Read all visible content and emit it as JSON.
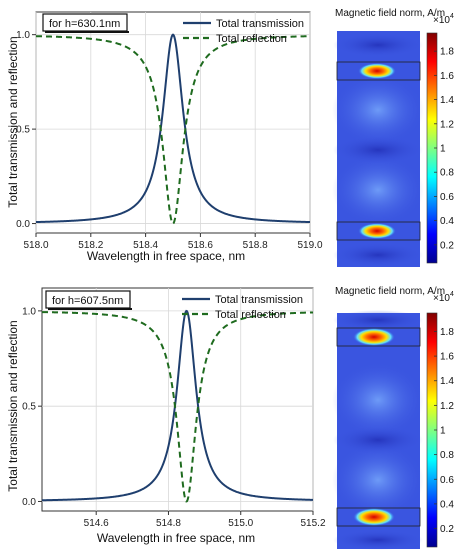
{
  "chart_data": [
    {
      "type": "line",
      "annotation": "for h=630.1nm",
      "xlabel": "Wavelength in free space, nm",
      "ylabel": "Total transmission and reflection",
      "xlim": [
        518.0,
        519.0
      ],
      "ylim": [
        -0.05,
        1.12
      ],
      "xticks": [
        "518.0",
        "518.2",
        "518.4",
        "518.6",
        "518.8",
        "519.0"
      ],
      "yticks": [
        "0.0",
        "0.5",
        "1.0"
      ],
      "grid": true,
      "legend_position": "top-right",
      "series": [
        {
          "name": "Total transmission",
          "color": "#1f3f6e",
          "style": "solid",
          "resonance_center": 518.5,
          "half_width": 0.045,
          "peak": 1.0,
          "x_start": 518.0,
          "x_end": 519.0
        },
        {
          "name": "Total reflection",
          "color": "#1f6b1f",
          "style": "dashed",
          "resonance_center": 518.5,
          "half_width": 0.045,
          "peak": 1.0,
          "x_start": 518.0,
          "x_end": 519.0
        }
      ]
    },
    {
      "type": "line",
      "annotation": "for h=607.5nm",
      "xlabel": "Wavelength in free space, nm",
      "ylabel": "Total transmission and reflection",
      "xlim": [
        514.45,
        515.2
      ],
      "ylim": [
        -0.05,
        1.12
      ],
      "xticks": [
        "514.6",
        "514.8",
        "515.0",
        "515.2"
      ],
      "yticks": [
        "0.0",
        "0.5",
        "1.0"
      ],
      "grid": true,
      "legend_position": "top-right",
      "series": [
        {
          "name": "Total transmission",
          "color": "#1f3f6e",
          "style": "solid",
          "resonance_center": 514.85,
          "half_width": 0.032,
          "peak": 1.0,
          "x_start": 514.45,
          "x_end": 515.2
        },
        {
          "name": "Total reflection",
          "color": "#1f6b1f",
          "style": "dashed",
          "resonance_center": 514.85,
          "half_width": 0.032,
          "peak": 1.0,
          "x_start": 514.45,
          "x_end": 515.2
        }
      ]
    },
    {
      "type": "heatmap",
      "title": "Magnetic field norm, A/m",
      "colorbar_exponent": "×10",
      "colorbar_exponent_power": "4",
      "colorbar_ticks": [
        "1.8",
        "1.6",
        "1.4",
        "1.2",
        "1",
        "0.8",
        "0.6",
        "0.4",
        "0.2"
      ],
      "colorbar_tick_values": [
        1.8,
        1.6,
        1.4,
        1.2,
        1.0,
        0.8,
        0.6,
        0.4,
        0.2
      ],
      "colorbar_range": [
        0.05,
        1.95
      ]
    },
    {
      "type": "heatmap",
      "title": "Magnetic field norm, A/m",
      "colorbar_exponent": "×10",
      "colorbar_exponent_power": "4",
      "colorbar_ticks": [
        "1.8",
        "1.6",
        "1.4",
        "1.2",
        "1",
        "0.8",
        "0.6",
        "0.4",
        "0.2"
      ],
      "colorbar_tick_values": [
        1.8,
        1.6,
        1.4,
        1.2,
        1.0,
        0.8,
        0.6,
        0.4,
        0.2
      ],
      "colorbar_range": [
        0.05,
        1.95
      ]
    }
  ]
}
